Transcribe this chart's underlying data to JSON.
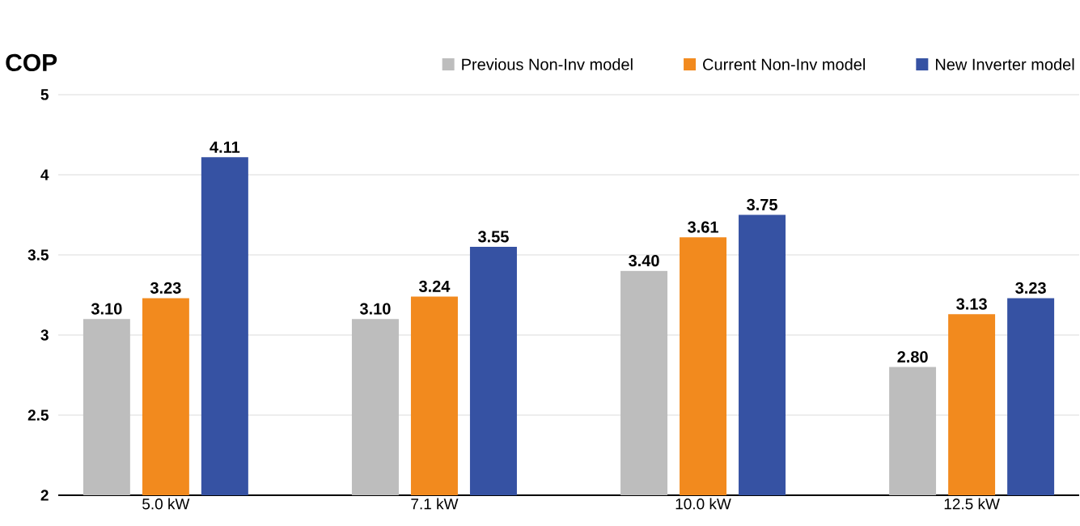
{
  "chart_data": {
    "type": "bar",
    "ylabel": "COP",
    "categories": [
      "5.0 kW",
      "7.1 kW",
      "10.0 kW",
      "12.5 kW"
    ],
    "series": [
      {
        "name": "Previous Non-Inv model",
        "color": "#bdbdbd",
        "values": [
          3.1,
          3.1,
          3.4,
          2.8
        ],
        "value_labels": [
          "3.10",
          "3.10",
          "3.40",
          "2.80"
        ]
      },
      {
        "name": "Current Non-Inv model",
        "color": "#f28a1e",
        "values": [
          3.23,
          3.24,
          3.61,
          3.13
        ],
        "value_labels": [
          "3.23",
          "3.24",
          "3.61",
          "3.13"
        ]
      },
      {
        "name": "New Inverter model",
        "color": "#3652a3",
        "values": [
          4.11,
          3.55,
          3.75,
          3.23
        ],
        "value_labels": [
          "4.11",
          "3.55",
          "3.75",
          "3.23"
        ]
      }
    ],
    "ylim": [
      2,
      4.5
    ],
    "yticks": [
      2,
      2.5,
      3,
      3.5,
      4,
      {
        "value": 4.5,
        "label": "5"
      }
    ],
    "grid": "y",
    "legend": "top"
  }
}
